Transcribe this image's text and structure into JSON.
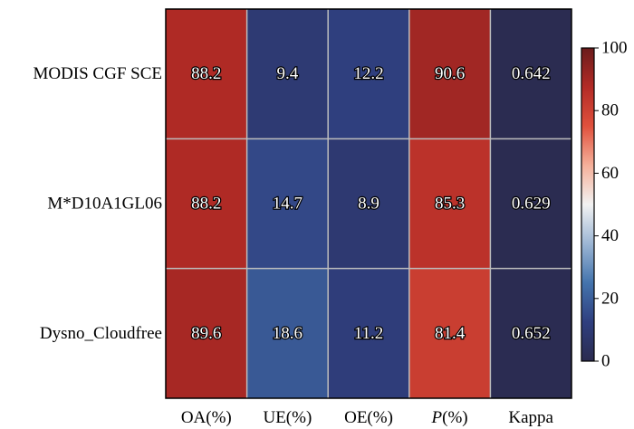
{
  "chart_data": {
    "type": "heatmap",
    "title": "",
    "rows": [
      "MODIS CGF SCE",
      "M*D10A1GL06",
      "Dysno_Cloudfree"
    ],
    "columns": [
      {
        "label": "OA(%)",
        "italic_prefix": ""
      },
      {
        "label": "UE(%)",
        "italic_prefix": ""
      },
      {
        "label": "OE(%)",
        "italic_prefix": ""
      },
      {
        "label": "(%)",
        "italic_prefix": "P"
      },
      {
        "label": "Kappa",
        "italic_prefix": ""
      }
    ],
    "values": [
      [
        88.2,
        9.4,
        12.2,
        90.6,
        0.642
      ],
      [
        88.2,
        14.7,
        8.9,
        85.3,
        0.629
      ],
      [
        89.6,
        18.6,
        11.2,
        81.4,
        0.652
      ]
    ],
    "value_labels": [
      [
        "88.2",
        "9.4",
        "12.2",
        "90.6",
        "0.642"
      ],
      [
        "88.2",
        "14.7",
        "8.9",
        "85.3",
        "0.629"
      ],
      [
        "89.6",
        "18.6",
        "11.2",
        "81.4",
        "0.652"
      ]
    ],
    "colorbar": {
      "range": [
        0,
        100
      ],
      "ticks": [
        0,
        20,
        40,
        60,
        80,
        100
      ],
      "colormap": "RdBu_r",
      "stops": [
        "#2b2b4f",
        "#2f3f7f",
        "#4474ad",
        "#9cb6d4",
        "#f2f2f2",
        "#f5b09a",
        "#e0513d",
        "#b32b26",
        "#6b1c1c"
      ]
    },
    "grid": true
  }
}
